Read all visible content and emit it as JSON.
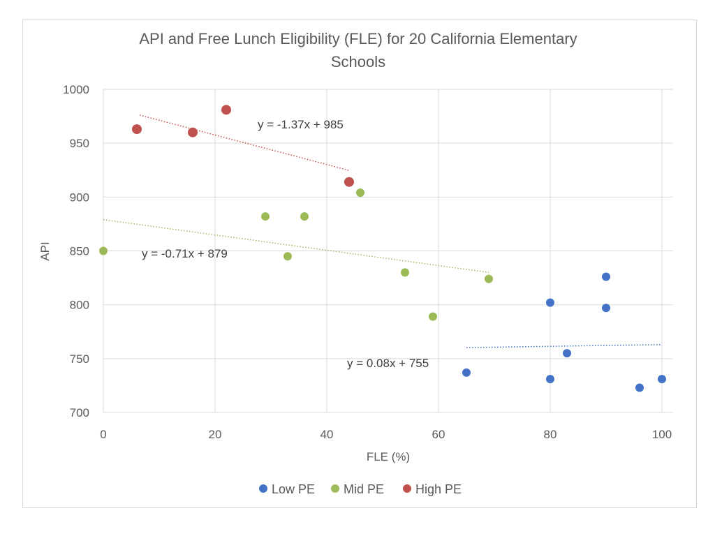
{
  "chart_data": {
    "type": "scatter",
    "title_lines": [
      "API and Free Lunch Eligibility (FLE) for 20 California Elementary",
      "Schools"
    ],
    "xlabel": "FLE (%)",
    "ylabel": "API",
    "xlim": [
      0,
      100
    ],
    "ylim": [
      700,
      1000
    ],
    "x_ticks": [
      0,
      20,
      40,
      60,
      80,
      100
    ],
    "y_ticks": [
      700,
      750,
      800,
      850,
      900,
      950,
      1000
    ],
    "grid": true,
    "legend_position": "bottom",
    "series": [
      {
        "name": "Low PE",
        "color": "#4472c4",
        "points": [
          [
            65,
            737
          ],
          [
            80,
            731
          ],
          [
            80,
            802
          ],
          [
            83,
            755
          ],
          [
            90,
            826
          ],
          [
            90,
            797
          ],
          [
            96,
            723
          ],
          [
            100,
            731
          ]
        ],
        "trendline": {
          "slope": 0.08,
          "intercept": 755,
          "x_range": [
            65,
            100
          ],
          "equation": "y = 0.08x + 755"
        }
      },
      {
        "name": "Mid PE",
        "color": "#9bbb59",
        "points": [
          [
            0,
            850
          ],
          [
            29,
            882
          ],
          [
            33,
            845
          ],
          [
            36,
            882
          ],
          [
            46,
            904
          ],
          [
            54,
            830
          ],
          [
            59,
            789
          ],
          [
            69,
            824
          ]
        ],
        "trendline": {
          "slope": -0.71,
          "intercept": 879,
          "x_range": [
            0,
            69
          ],
          "equation": "y = -0.71x + 879"
        }
      },
      {
        "name": "High PE",
        "color": "#c0504d",
        "points": [
          [
            6,
            963
          ],
          [
            16,
            960
          ],
          [
            22,
            981
          ],
          [
            44,
            914
          ]
        ],
        "trendline": {
          "slope": -1.37,
          "intercept": 985,
          "x_range": [
            6.5,
            44
          ],
          "equation": "y = -1.37x + 985"
        }
      }
    ]
  }
}
